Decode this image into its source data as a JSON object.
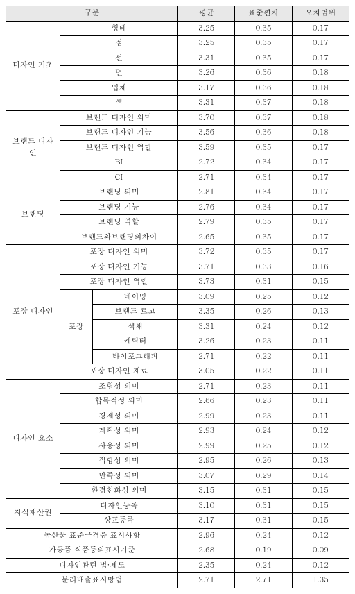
{
  "header": {
    "category": "구분",
    "mean": "평균",
    "sd": "표준편차",
    "error": "오차범위"
  },
  "groups": [
    {
      "label": "디자인 기초",
      "rows": [
        {
          "sub": [
            "형태"
          ],
          "mean": "3.25",
          "sd": "0.35",
          "err": "0.17"
        },
        {
          "sub": [
            "점"
          ],
          "mean": "3.25",
          "sd": "0.35",
          "err": "0.17"
        },
        {
          "sub": [
            "선"
          ],
          "mean": "3.31",
          "sd": "0.35",
          "err": "0.17"
        },
        {
          "sub": [
            "면"
          ],
          "mean": "3.26",
          "sd": "0.36",
          "err": "0.18"
        },
        {
          "sub": [
            "입체"
          ],
          "mean": "3.17",
          "sd": "0.36",
          "err": "0.18"
        },
        {
          "sub": [
            "색"
          ],
          "mean": "3.31",
          "sd": "0.37",
          "err": "0.18"
        }
      ]
    },
    {
      "label": "브랜드 디자인",
      "rows": [
        {
          "sub": [
            "브랜드 디자인 의미"
          ],
          "mean": "3.70",
          "sd": "0.37",
          "err": "0.18"
        },
        {
          "sub": [
            "브랜드 디자인 기능"
          ],
          "mean": "3.56",
          "sd": "0.36",
          "err": "0.18"
        },
        {
          "sub": [
            "브랜드 디자인 역할"
          ],
          "mean": "3.59",
          "sd": "0.35",
          "err": "0.17"
        },
        {
          "sub": [
            "BI"
          ],
          "mean": "2.72",
          "sd": "0.34",
          "err": "0.17"
        },
        {
          "sub": [
            "CI"
          ],
          "mean": "2.71",
          "sd": "0.34",
          "err": "0.17"
        }
      ]
    },
    {
      "label": "브랜딩",
      "rows": [
        {
          "sub": [
            "브랜딩 의미"
          ],
          "mean": "2.81",
          "sd": "0.34",
          "err": "0.17"
        },
        {
          "sub": [
            "브랜딩 기능"
          ],
          "mean": "2.76",
          "sd": "0.34",
          "err": "0.17"
        },
        {
          "sub": [
            "브랜딩 역할"
          ],
          "mean": "2.79",
          "sd": "0.35",
          "err": "0.17"
        },
        {
          "sub": [
            "브랜드와브랜딩의차이"
          ],
          "mean": "2.65",
          "sd": "0.35",
          "err": "0.17"
        }
      ]
    },
    {
      "label": "포장 디자인",
      "subgroup_label": "포장",
      "rows": [
        {
          "sub": [
            "포장 디자인 의미"
          ],
          "mean": "3.72",
          "sd": "0.35",
          "err": "0.17"
        },
        {
          "sub": [
            "포장 디자인 기능"
          ],
          "mean": "3.71",
          "sd": "0.33",
          "err": "0.16"
        },
        {
          "sub": [
            "포장 디자인 역할"
          ],
          "mean": "3.73",
          "sd": "0.31",
          "err": "0.15"
        },
        {
          "subgroup": true,
          "sub": [
            "네이밍"
          ],
          "mean": "3.09",
          "sd": "0.25",
          "err": "0.12"
        },
        {
          "subgroup": true,
          "sub": [
            "브랜드 로고"
          ],
          "mean": "3.35",
          "sd": "0.26",
          "err": "0.13"
        },
        {
          "subgroup": true,
          "sub": [
            "색채"
          ],
          "mean": "3.31",
          "sd": "0.24",
          "err": "0.12"
        },
        {
          "subgroup": true,
          "sub": [
            "캐릭터"
          ],
          "mean": "3.26",
          "sd": "0.23",
          "err": "0.11"
        },
        {
          "subgroup": true,
          "sub": [
            "타이포그래피"
          ],
          "mean": "2.71",
          "sd": "0.22",
          "err": "0.11"
        },
        {
          "sub": [
            "포장 디자인 재료"
          ],
          "mean": "3.05",
          "sd": "0.22",
          "err": "0.11"
        }
      ]
    },
    {
      "label": "디자인 요소",
      "rows": [
        {
          "sub": [
            "조형성 의미"
          ],
          "mean": "2.71",
          "sd": "0.23",
          "err": "0.11"
        },
        {
          "sub": [
            "합목적성 의미"
          ],
          "mean": "2.66",
          "sd": "0.23",
          "err": "0.11"
        },
        {
          "sub": [
            "경제성 의미"
          ],
          "mean": "2.99",
          "sd": "0.23",
          "err": "0.11"
        },
        {
          "sub": [
            "계획성 의미"
          ],
          "mean": "2.93",
          "sd": "0.24",
          "err": "0.12"
        },
        {
          "sub": [
            "사용성 의미"
          ],
          "mean": "2.99",
          "sd": "0.25",
          "err": "0.12"
        },
        {
          "sub": [
            "적합성 의미"
          ],
          "mean": "2.95",
          "sd": "0.26",
          "err": "0.13"
        },
        {
          "sub": [
            "만족성 의미"
          ],
          "mean": "3.07",
          "sd": "0.29",
          "err": "0.14"
        },
        {
          "sub": [
            "환경친화성 의미"
          ],
          "mean": "3.15",
          "sd": "0.31",
          "err": "0.15"
        }
      ]
    },
    {
      "label": "지식재산권",
      "rows": [
        {
          "sub": [
            "디자인등록"
          ],
          "mean": "3.10",
          "sd": "0.31",
          "err": "0.15"
        },
        {
          "sub": [
            "상표등록"
          ],
          "mean": "3.17",
          "sd": "0.31",
          "err": "0.15"
        }
      ]
    }
  ],
  "fullrows": [
    {
      "label": "농산물 표준규격품 표시사항",
      "mean": "2.96",
      "sd": "0.24",
      "err": "0.12"
    },
    {
      "label": "가공품 식품등의표시기준",
      "mean": "2.68",
      "sd": "0.19",
      "err": "0.09"
    },
    {
      "label": "디자인관련 법·제도",
      "mean": "2.35",
      "sd": "0.24",
      "err": "0.12"
    },
    {
      "label": "분리배출표시방법",
      "mean": "2.71",
      "sd": "2.71",
      "err": "1.35"
    }
  ]
}
